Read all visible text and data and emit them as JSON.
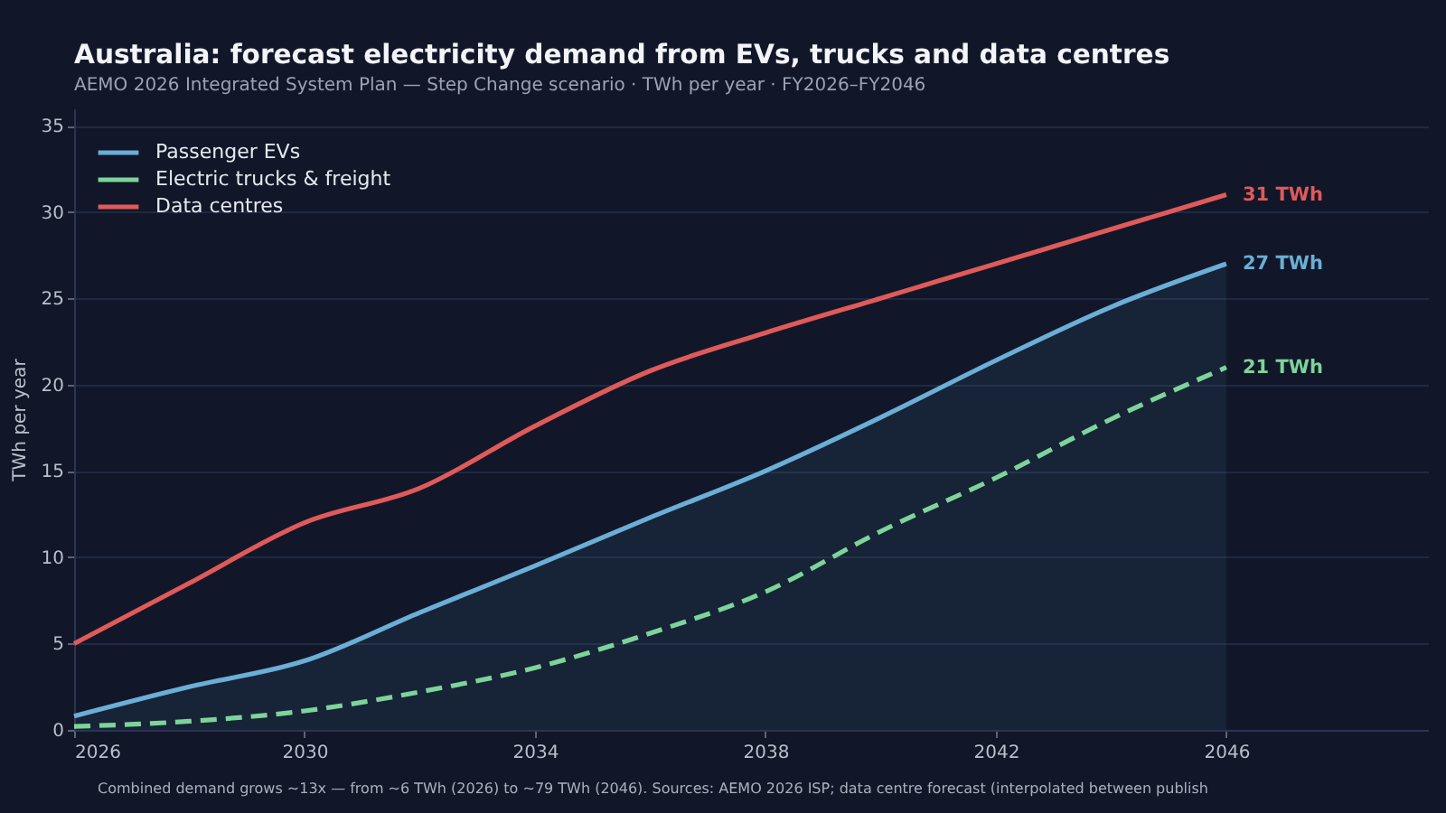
{
  "chart_data": {
    "type": "line",
    "title": "Australia: forecast electricity demand from EVs, trucks and data centres",
    "subtitle": "AEMO 2026 Integrated System Plan — Step Change scenario · TWh per year · FY2026–FY2046",
    "ylabel": "TWh per year",
    "x": [
      2026,
      2028,
      2030,
      2032,
      2034,
      2036,
      2038,
      2040,
      2042,
      2044,
      2046
    ],
    "series": [
      {
        "name": "Passenger EVs",
        "type": "area",
        "color": "#6baed6",
        "values": [
          0.8,
          2.5,
          4.0,
          6.8,
          9.5,
          12.3,
          15.0,
          18.1,
          21.4,
          24.5,
          27.0
        ],
        "value_labels": [
          null,
          null,
          null,
          null,
          null,
          null,
          null,
          null,
          null,
          null,
          "27 TWh"
        ]
      },
      {
        "name": "Electric trucks & freight",
        "line_style": "dashed",
        "color": "#7dd49a",
        "values": [
          0.2,
          0.5,
          1.1,
          2.2,
          3.6,
          5.6,
          8.0,
          11.5,
          14.6,
          18.0,
          21.0
        ],
        "value_labels": [
          null,
          null,
          null,
          null,
          null,
          null,
          null,
          null,
          null,
          null,
          "21 TWh"
        ]
      },
      {
        "name": "Data centres",
        "color": "#e05a5a",
        "values": [
          5.0,
          8.5,
          12.0,
          14.0,
          17.6,
          20.8,
          23.0,
          25.0,
          27.0,
          29.0,
          31.0
        ],
        "value_labels": [
          null,
          null,
          null,
          null,
          null,
          null,
          null,
          null,
          null,
          null,
          "31 TWh"
        ]
      }
    ],
    "xlim": [
      2026,
      2049.5
    ],
    "xticks": [
      2026,
      2030,
      2034,
      2038,
      2042,
      2046
    ],
    "ylim": [
      0,
      36
    ],
    "yticks": [
      0,
      5,
      10,
      15,
      20,
      25,
      30,
      35
    ],
    "grid": "y",
    "legend": "top left",
    "annotations": [
      "Combined demand grows ~13x — from ~6 TWh (2026) to ~79 TWh (2046). Sources: AEMO 2026 ISP; data centre forecast (interpolated between publish"
    ]
  }
}
